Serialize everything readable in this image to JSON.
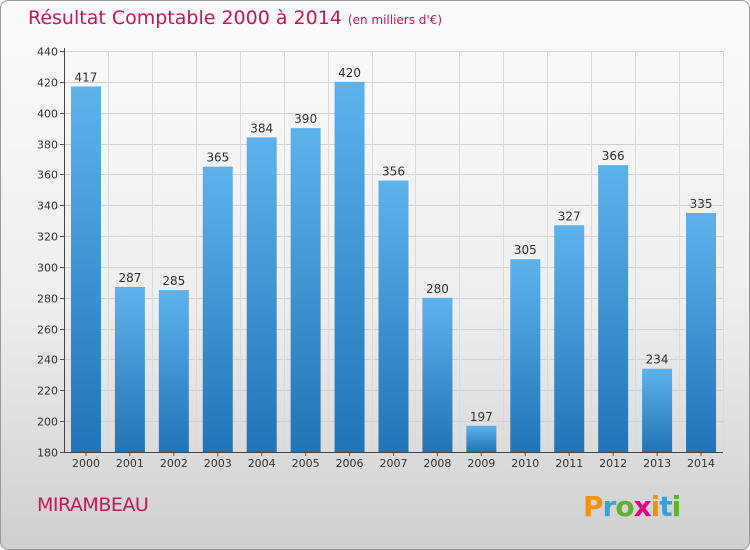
{
  "title": "Résultat Comptable 2000 à 2014",
  "subtitle": "(en milliers d'€)",
  "commune": "MIRAMBEAU",
  "brand": {
    "letters": [
      "P",
      "r",
      "o",
      "x",
      "i",
      "t",
      "i"
    ],
    "colors": [
      "#f39200",
      "#3aa0d8",
      "#5bb330",
      "#e6007e",
      "#f39200",
      "#3aa0d8",
      "#5bb330"
    ]
  },
  "colors": {
    "accent": "#c8155b",
    "bar_light": "#5eb2ec",
    "bar_dark": "#2174b7"
  },
  "chart_data": {
    "type": "bar",
    "categories": [
      "2000",
      "2001",
      "2002",
      "2003",
      "2004",
      "2005",
      "2006",
      "2007",
      "2008",
      "2009",
      "2010",
      "2011",
      "2012",
      "2013",
      "2014"
    ],
    "values": [
      417,
      287,
      285,
      365,
      384,
      390,
      420,
      356,
      280,
      197,
      305,
      327,
      366,
      234,
      335
    ],
    "ylim": [
      180,
      440
    ],
    "yticks": [
      180,
      200,
      220,
      240,
      260,
      280,
      300,
      320,
      340,
      360,
      380,
      400,
      420,
      440
    ],
    "xlabel": "",
    "ylabel": "",
    "grid": true,
    "data_labels": true
  }
}
